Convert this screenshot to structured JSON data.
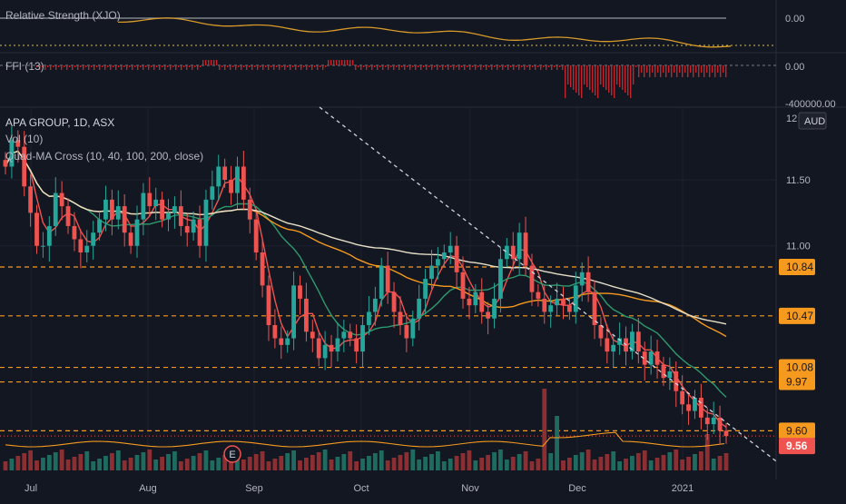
{
  "panes": {
    "rs": {
      "label": "Relative Strength (XJO)",
      "value_label": "0.00"
    },
    "ffi": {
      "label": "FFI (13)",
      "value_labels": [
        "0.00",
        "-400000.00"
      ]
    },
    "main": {
      "title": "APA GROUP, 1D, ASX",
      "subtitles": [
        "Vol (10)",
        "Quad-MA Cross (10, 40, 100, 200, close)"
      ],
      "currency": "AUD",
      "top_price_label": "12"
    }
  },
  "colors": {
    "background": "#131722",
    "up": "#26a69a",
    "down": "#ef5350",
    "vol_up": "#1f6b5f",
    "vol_down": "#8c2f32",
    "ma10": "#f05350",
    "ma40": "#2e9a6d",
    "ma100": "#f59a1e",
    "ma200": "#e6dfc8",
    "level_line": "#f59a1e",
    "rs_line": "#d79a2a",
    "ffi_bar": "#c0262b",
    "last_price_bg": "#ef5350",
    "trendline": "#d1d4dc",
    "grid": "#1e2230"
  },
  "chart_data": {
    "type": "candlestick",
    "title": "APA GROUP, 1D, ASX",
    "x_ticks": [
      "Jul",
      "Aug",
      "Sep",
      "Oct",
      "Nov",
      "Dec",
      "2021"
    ],
    "y_ticks": [
      11.5,
      11.0
    ],
    "ylim": [
      9.3,
      12.05
    ],
    "horizontal_levels": [
      10.84,
      10.47,
      10.08,
      9.97,
      9.6
    ],
    "last_price": 9.56,
    "price_labels": [
      "10.84",
      "10.47",
      "10.08",
      "9.97",
      "9.60"
    ],
    "last_price_label": "9.56",
    "y_tick_labels": [
      "11.50",
      "11.00"
    ],
    "earnings_marker": "E",
    "trendline": {
      "start": [
        "Jul 1",
        12.05
      ],
      "end": [
        "Jan 5",
        9.37
      ]
    },
    "series": [
      {
        "name": "Close",
        "values": [
          11.6,
          11.8,
          11.75,
          11.45,
          11.25,
          11.0,
          11.0,
          11.15,
          11.4,
          11.3,
          11.15,
          11.05,
          10.95,
          11.0,
          11.1,
          11.2,
          11.35,
          11.2,
          11.3,
          11.1,
          11.0,
          11.2,
          11.4,
          11.3,
          11.35,
          11.2,
          11.25,
          11.3,
          11.15,
          11.1,
          11.2,
          11.0,
          11.35,
          11.45,
          11.6,
          11.5,
          11.4,
          11.6,
          11.35,
          11.2,
          10.95,
          10.7,
          10.4,
          10.3,
          10.25,
          10.3,
          10.7,
          10.6,
          10.35,
          10.3,
          10.15,
          10.25,
          10.2,
          10.3,
          10.35,
          10.3,
          10.2,
          10.4,
          10.5,
          10.6,
          10.85,
          10.65,
          10.5,
          10.4,
          10.3,
          10.45,
          10.6,
          10.75,
          10.85,
          10.9,
          10.95,
          11.0,
          10.8,
          10.6,
          10.55,
          10.65,
          10.5,
          10.45,
          10.6,
          10.9,
          11.0,
          10.9,
          11.1,
          10.85,
          10.65,
          10.6,
          10.5,
          10.55,
          10.6,
          10.55,
          10.5,
          10.7,
          10.8,
          10.65,
          10.4,
          10.3,
          10.2,
          10.25,
          10.3,
          10.2,
          10.35,
          10.2,
          10.1,
          10.2,
          10.1,
          10.0,
          10.05,
          9.9,
          9.8,
          9.75,
          9.85,
          9.7,
          9.65,
          9.7,
          9.6,
          9.56
        ]
      },
      {
        "name": "Quad-MA 10"
      },
      {
        "name": "Quad-MA 40"
      },
      {
        "name": "Quad-MA 100"
      },
      {
        "name": "Quad-MA 200"
      }
    ]
  }
}
